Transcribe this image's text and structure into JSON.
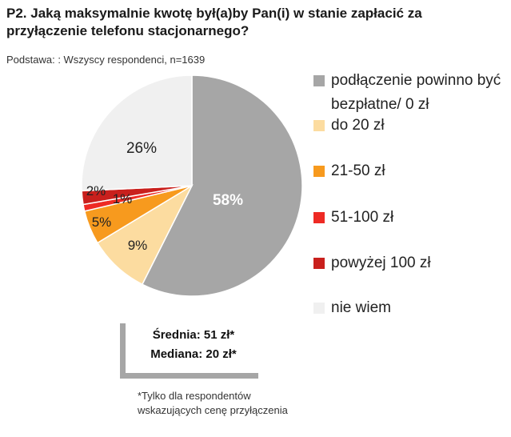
{
  "title": "P2. Jaką maksymalnie kwotę był(a)by Pan(i) w stanie zapłacić za przyłączenie telefonu stacjonarnego?",
  "subtitle": "Podstawa: : Wszyscy respondenci, n=1639",
  "stats": {
    "mean": "Średnia: 51 zł*",
    "median": "Mediana: 20 zł*"
  },
  "footnote": {
    "line1": "*Tylko dla respondentów",
    "line2": "wskazujących cenę przyłączenia"
  },
  "chart_data": {
    "type": "pie",
    "title": "P2. Jaką maksymalnie kwotę był(a)by Pan(i) w stanie zapłacić za przyłączenie telefonu stacjonarnego?",
    "legend_position": "right",
    "slices": [
      {
        "label": "podłączenie powinno być bezpłatne/ 0 zł",
        "value": 58,
        "value_label": "58%",
        "color": "#a6a6a6",
        "label_color": "#ffffff"
      },
      {
        "label": "do 20 zł",
        "value": 9,
        "value_label": "9%",
        "color": "#fcdca0",
        "label_color": "#222222"
      },
      {
        "label": "21-50 zł",
        "value": 5,
        "value_label": "5%",
        "color": "#f79a1e",
        "label_color": "#222222"
      },
      {
        "label": "51-100 zł",
        "value": 1,
        "value_label": "1%",
        "color": "#ee2a24",
        "label_color": "#222222"
      },
      {
        "label": "powyżej 100 zł",
        "value": 2,
        "value_label": "2%",
        "color": "#c9201d",
        "label_color": "#222222"
      },
      {
        "label": "nie wiem",
        "value": 26,
        "value_label": "26%",
        "color": "#f0f0f0",
        "label_color": "#222222"
      }
    ]
  }
}
